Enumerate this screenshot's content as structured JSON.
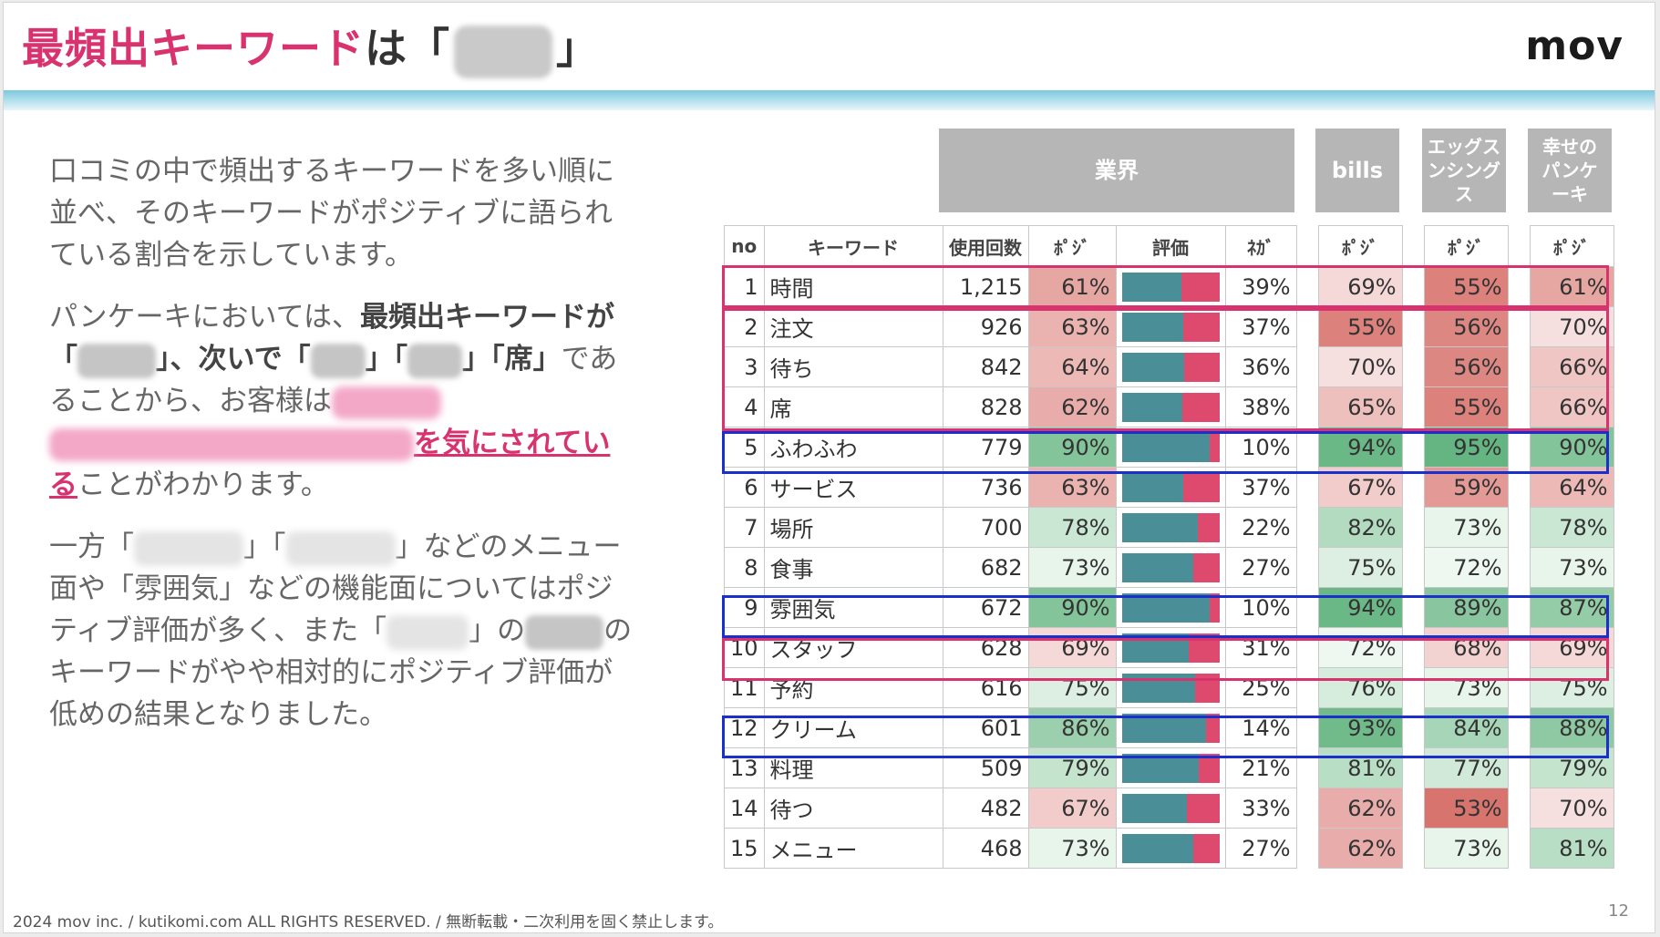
{
  "slide": {
    "title_main": "最頻出キーワード",
    "title_suffix": "は「",
    "title_close": "」",
    "logo": "mov",
    "footer": "2024 mov inc. / kutikomi.com ALL RIGHTS RESERVED. / 無断転載・二次利用を固く禁止します。",
    "page_number": "12"
  },
  "body": {
    "p1": "口コミの中で頻出するキーワードを多い順に並べ、そのキーワードがポジティブに語られている割合を示しています。",
    "p2_a": "パンケーキにおいては、",
    "p2_b": "最頻出キーワードが「",
    "p2_c": "」、次いで「",
    "p2_d": "」「",
    "p2_e": "」「席」",
    "p2_f": "であることから、お客様は",
    "p2_g": "を気にされている",
    "p2_h": "ことがわかります。",
    "p3_a": "一方「",
    "p3_b": "」「",
    "p3_c": "」などのメニュー面や「雰囲気」などの機能面についてはポジティブ評価が多く、また「",
    "p3_d": "」の",
    "p3_e": "のキーワードがやや相対的にポジティブ評価が低めの結果となりました。"
  },
  "table": {
    "groups": {
      "industry": "業界",
      "bills": "bills",
      "eggs": "エッグスンシングス",
      "happy": "幸せのパンケーキ"
    },
    "headers": {
      "no": "no",
      "keyword": "キーワード",
      "count": "使用回数",
      "pos": "ﾎﾟｼﾞ",
      "eval": "評価",
      "neg": "ﾈｶﾞ",
      "bills_pos": "ﾎﾟｼﾞ",
      "eggs_pos": "ﾎﾟｼﾞ",
      "happy_pos": "ﾎﾟｼﾞ"
    },
    "rows": [
      {
        "no": "1",
        "keyword": "時間",
        "count": "1,215",
        "pos": "61%",
        "neg": "39%",
        "bills": "69%",
        "eggs": "55%",
        "happy": "61%",
        "pos_val": 61,
        "bills_val": 69,
        "eggs_val": 55,
        "happy_val": 61
      },
      {
        "no": "2",
        "keyword": "注文",
        "count": "926",
        "pos": "63%",
        "neg": "37%",
        "bills": "55%",
        "eggs": "56%",
        "happy": "70%",
        "pos_val": 63,
        "bills_val": 55,
        "eggs_val": 56,
        "happy_val": 70
      },
      {
        "no": "3",
        "keyword": "待ち",
        "count": "842",
        "pos": "64%",
        "neg": "36%",
        "bills": "70%",
        "eggs": "56%",
        "happy": "66%",
        "pos_val": 64,
        "bills_val": 70,
        "eggs_val": 56,
        "happy_val": 66
      },
      {
        "no": "4",
        "keyword": "席",
        "count": "828",
        "pos": "62%",
        "neg": "38%",
        "bills": "65%",
        "eggs": "55%",
        "happy": "66%",
        "pos_val": 62,
        "bills_val": 65,
        "eggs_val": 55,
        "happy_val": 66
      },
      {
        "no": "5",
        "keyword": "ふわふわ",
        "count": "779",
        "pos": "90%",
        "neg": "10%",
        "bills": "94%",
        "eggs": "95%",
        "happy": "90%",
        "pos_val": 90,
        "bills_val": 94,
        "eggs_val": 95,
        "happy_val": 90
      },
      {
        "no": "6",
        "keyword": "サービス",
        "count": "736",
        "pos": "63%",
        "neg": "37%",
        "bills": "67%",
        "eggs": "59%",
        "happy": "64%",
        "pos_val": 63,
        "bills_val": 67,
        "eggs_val": 59,
        "happy_val": 64
      },
      {
        "no": "7",
        "keyword": "場所",
        "count": "700",
        "pos": "78%",
        "neg": "22%",
        "bills": "82%",
        "eggs": "73%",
        "happy": "78%",
        "pos_val": 78,
        "bills_val": 82,
        "eggs_val": 73,
        "happy_val": 78
      },
      {
        "no": "8",
        "keyword": "食事",
        "count": "682",
        "pos": "73%",
        "neg": "27%",
        "bills": "75%",
        "eggs": "72%",
        "happy": "73%",
        "pos_val": 73,
        "bills_val": 75,
        "eggs_val": 72,
        "happy_val": 73
      },
      {
        "no": "9",
        "keyword": "雰囲気",
        "count": "672",
        "pos": "90%",
        "neg": "10%",
        "bills": "94%",
        "eggs": "89%",
        "happy": "87%",
        "pos_val": 90,
        "bills_val": 94,
        "eggs_val": 89,
        "happy_val": 87
      },
      {
        "no": "10",
        "keyword": "スタッフ",
        "count": "628",
        "pos": "69%",
        "neg": "31%",
        "bills": "72%",
        "eggs": "68%",
        "happy": "69%",
        "pos_val": 69,
        "bills_val": 72,
        "eggs_val": 68,
        "happy_val": 69
      },
      {
        "no": "11",
        "keyword": "予約",
        "count": "616",
        "pos": "75%",
        "neg": "25%",
        "bills": "76%",
        "eggs": "73%",
        "happy": "75%",
        "pos_val": 75,
        "bills_val": 76,
        "eggs_val": 73,
        "happy_val": 75
      },
      {
        "no": "12",
        "keyword": "クリーム",
        "count": "601",
        "pos": "86%",
        "neg": "14%",
        "bills": "93%",
        "eggs": "84%",
        "happy": "88%",
        "pos_val": 86,
        "bills_val": 93,
        "eggs_val": 84,
        "happy_val": 88
      },
      {
        "no": "13",
        "keyword": "料理",
        "count": "509",
        "pos": "79%",
        "neg": "21%",
        "bills": "81%",
        "eggs": "77%",
        "happy": "79%",
        "pos_val": 79,
        "bills_val": 81,
        "eggs_val": 77,
        "happy_val": 79
      },
      {
        "no": "14",
        "keyword": "待つ",
        "count": "482",
        "pos": "67%",
        "neg": "33%",
        "bills": "62%",
        "eggs": "53%",
        "happy": "70%",
        "pos_val": 67,
        "bills_val": 62,
        "eggs_val": 53,
        "happy_val": 70
      },
      {
        "no": "15",
        "keyword": "メニュー",
        "count": "468",
        "pos": "73%",
        "neg": "27%",
        "bills": "62%",
        "eggs": "73%",
        "happy": "81%",
        "pos_val": 73,
        "bills_val": 62,
        "eggs_val": 73,
        "happy_val": 81
      }
    ]
  },
  "colors": {
    "accent_pink": "#d8336e",
    "highlight_blue": "#1a2fcc",
    "bar_teal": "#4a8f97",
    "bar_red": "#dd4a6d"
  }
}
